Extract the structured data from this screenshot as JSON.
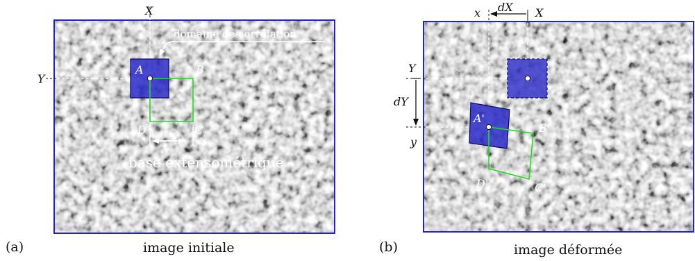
{
  "panel_a": {
    "tag": "(a)",
    "caption": "image initiale",
    "axis_x": "X",
    "axis_y": "Y",
    "point_a": "A",
    "point_b": "B",
    "point_c": "C",
    "point_d": "D",
    "callout": "domaine de corrélation",
    "gauge_label": "base extensométrique"
  },
  "panel_b": {
    "tag": "(b)",
    "caption": "image déformée",
    "axis_x": "X",
    "axis_x_def": "x",
    "axis_y": "Y",
    "axis_y_def": "y",
    "delta_x": "dX",
    "delta_y": "dY",
    "point_a": "A'",
    "point_b": "B'",
    "point_c": "C'",
    "point_d": "D'"
  },
  "colors": {
    "frame": "#2222cc",
    "subset_fill": "#2a2ac8",
    "gauge_line": "#22dd22",
    "speckle_base": "#6a6a6a"
  }
}
